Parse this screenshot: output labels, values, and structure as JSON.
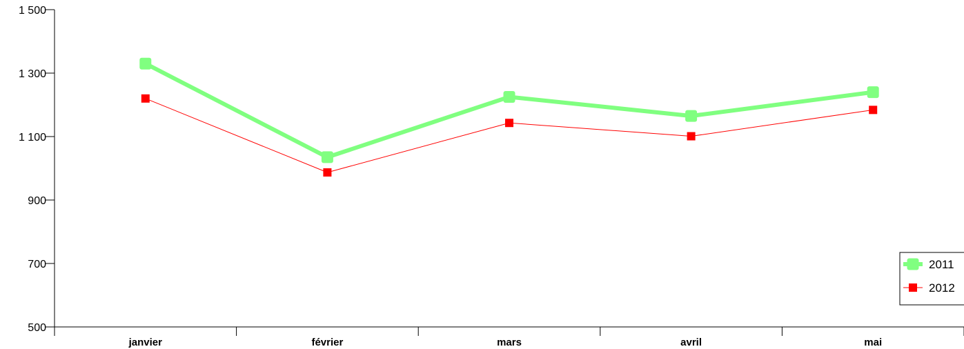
{
  "chart_data": {
    "type": "line",
    "categories": [
      "janvier",
      "février",
      "mars",
      "avril",
      "mai"
    ],
    "y_ticks": [
      "1 500",
      "1 300",
      "1 100",
      "900",
      "700",
      "500"
    ],
    "y_tick_values": [
      1500,
      1300,
      1100,
      900,
      700,
      500
    ],
    "ylim": [
      500,
      1500
    ],
    "grid": false,
    "legend_position": "bottom-right",
    "series": [
      {
        "name": "2011",
        "values": [
          1330,
          1035,
          1225,
          1165,
          1240
        ],
        "color": "#80ff80"
      },
      {
        "name": "2012",
        "values": [
          1220,
          987,
          1143,
          1101,
          1184
        ],
        "color": "#ff0000"
      }
    ]
  }
}
